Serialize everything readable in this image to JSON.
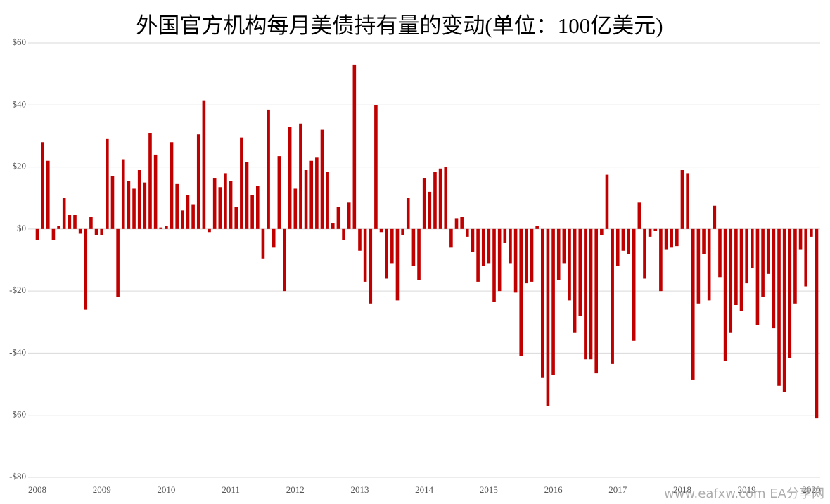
{
  "chart_data": {
    "type": "bar",
    "title": "外国官方机构每月美债持有量的变动(单位：100亿美元)",
    "watermark": "www.eafxw.com  EA分享网",
    "color": "#c00000",
    "grid": true,
    "ylim": [
      -80,
      60
    ],
    "yticks": [
      {
        "value": -80,
        "label": "-$80"
      },
      {
        "value": -60,
        "label": "-$60"
      },
      {
        "value": -40,
        "label": "-$40"
      },
      {
        "value": -20,
        "label": "-$20"
      },
      {
        "value": 0,
        "label": "$0"
      },
      {
        "value": 20,
        "label": "$20"
      },
      {
        "value": 40,
        "label": "$40"
      },
      {
        "value": 60,
        "label": "$60"
      }
    ],
    "categories": [
      "2008",
      null,
      null,
      null,
      null,
      null,
      null,
      null,
      null,
      null,
      null,
      null,
      "2009",
      null,
      null,
      null,
      null,
      null,
      null,
      null,
      null,
      null,
      null,
      null,
      "2010",
      null,
      null,
      null,
      null,
      null,
      null,
      null,
      null,
      null,
      null,
      null,
      "2011",
      null,
      null,
      null,
      null,
      null,
      null,
      null,
      null,
      null,
      null,
      null,
      "2012",
      null,
      null,
      null,
      null,
      null,
      null,
      null,
      null,
      null,
      null,
      null,
      "2013",
      null,
      null,
      null,
      null,
      null,
      null,
      null,
      null,
      null,
      null,
      null,
      "2014",
      null,
      null,
      null,
      null,
      null,
      null,
      null,
      null,
      null,
      null,
      null,
      "2015",
      null,
      null,
      null,
      null,
      null,
      null,
      null,
      null,
      null,
      null,
      null,
      "2016",
      null,
      null,
      null,
      null,
      null,
      null,
      null,
      null,
      null,
      null,
      null,
      "2017",
      null,
      null,
      null,
      null,
      null,
      null,
      null,
      null,
      null,
      null,
      null,
      "2018",
      null,
      null,
      null,
      null,
      null,
      null,
      null,
      null,
      null,
      null,
      null,
      "2019",
      null,
      null,
      null,
      null,
      null,
      null,
      null,
      null,
      null,
      null,
      null,
      "2020",
      null
    ],
    "values": [
      -3.5,
      28,
      22,
      -3.5,
      1,
      10,
      4.5,
      4.5,
      -1.5,
      -26,
      4,
      -2,
      -2,
      29,
      17,
      -22,
      22.5,
      15.5,
      13,
      19,
      15,
      31,
      24,
      0.5,
      1,
      28,
      14.5,
      6,
      11,
      8,
      30.5,
      41.5,
      -1,
      16.5,
      13.5,
      18,
      15.5,
      7,
      29.5,
      21.5,
      11,
      14,
      -9.5,
      38.5,
      -6,
      23.5,
      -20,
      33,
      13,
      34,
      19,
      22,
      23,
      32,
      18.5,
      2,
      7,
      -3.5,
      8.5,
      53,
      -7,
      -17,
      -24,
      40,
      -1,
      -16,
      -11,
      -23,
      -2,
      10,
      -12,
      -16.5,
      16.5,
      12,
      18.5,
      19.5,
      20,
      -6,
      3.5,
      4,
      -2.5,
      -7.5,
      -17,
      -12,
      -11,
      -23.5,
      -20,
      -4.5,
      -11,
      -20.5,
      -41,
      -17.5,
      -17,
      1,
      -48,
      -57,
      -47,
      -16.5,
      -11,
      -23,
      -33.5,
      -28,
      -42,
      -42,
      -46.5,
      -2,
      17.5,
      -43.5,
      -12,
      -7,
      -8,
      -36,
      8.5,
      -16,
      -2.5,
      -0.5,
      -20,
      -6.5,
      -6,
      -5.5,
      19,
      18,
      -48.5,
      -24,
      -8,
      -23,
      7.5,
      -15.5,
      -42.5,
      -33.5,
      -24.5,
      -26.5,
      -17.5,
      -12.5,
      -31,
      -22,
      -14.5,
      -32,
      -50.5,
      -52.5,
      -41.5,
      -24,
      -6.5,
      -18.5,
      -2.5,
      -61
    ]
  }
}
